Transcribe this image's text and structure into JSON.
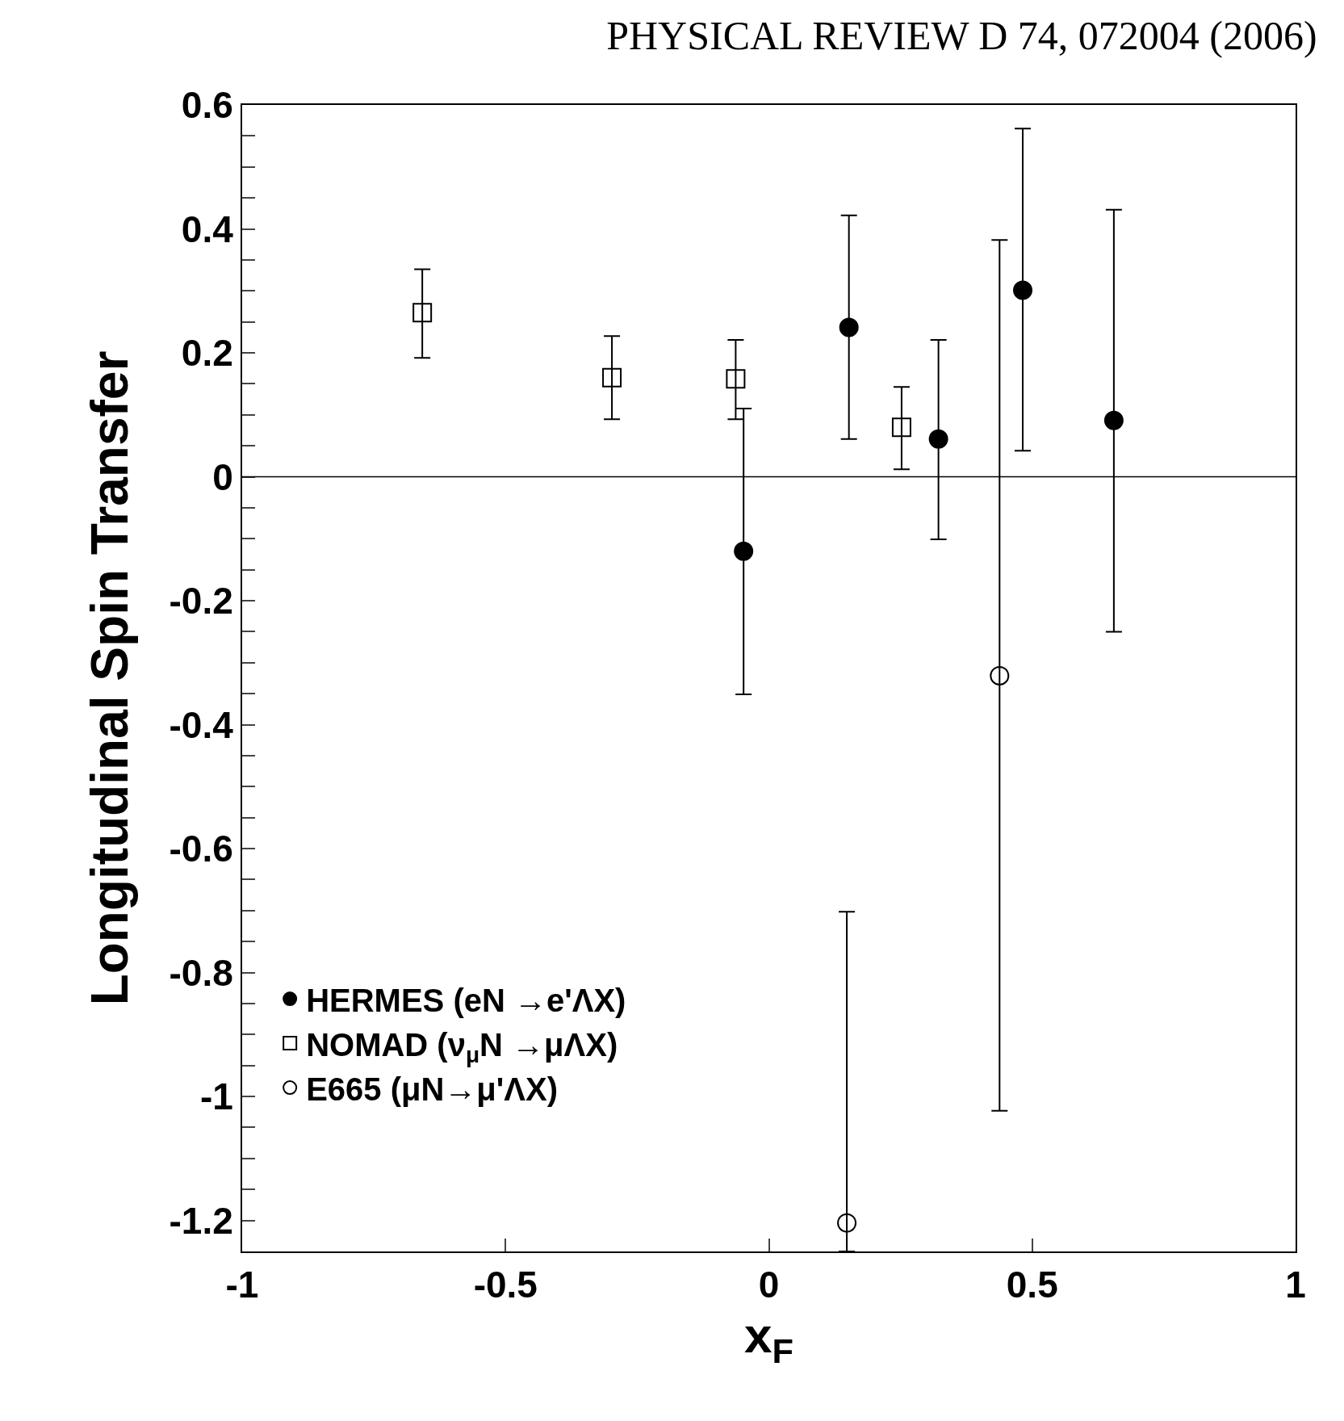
{
  "chart_data": {
    "type": "scatter",
    "title": "PHYSICAL REVIEW D 74, 072004 (2006)",
    "xlabel": "x$_{F}$",
    "ylabel": "Longitudinal Spin Transfer",
    "xlim": [
      -1,
      1
    ],
    "xticks": [
      -1,
      -0.5,
      0,
      0.5,
      1
    ],
    "ylim": [
      -1.25,
      0.6
    ],
    "yticks": [
      -1.2,
      {
        "value": -1.15,
        "label": null
      },
      {
        "value": -1.1,
        "label": null
      },
      {
        "value": -1.05,
        "label": null
      },
      -1,
      {
        "value": -0.95,
        "label": null
      },
      {
        "value": -0.9,
        "label": null
      },
      {
        "value": -0.85,
        "label": null
      },
      -0.8,
      {
        "value": -0.75,
        "label": null
      },
      {
        "value": -0.7,
        "label": null
      },
      {
        "value": -0.65,
        "label": null
      },
      -0.6,
      {
        "value": -0.55,
        "label": null
      },
      {
        "value": -0.5,
        "label": null
      },
      {
        "value": -0.45,
        "label": null
      },
      -0.4,
      {
        "value": -0.35,
        "label": null
      },
      {
        "value": -0.3,
        "label": null
      },
      {
        "value": -0.25,
        "label": null
      },
      -0.2,
      {
        "value": -0.15,
        "label": null
      },
      {
        "value": -0.1,
        "label": null
      },
      {
        "value": -0.05,
        "label": null
      },
      0,
      {
        "value": 0.05,
        "label": null
      },
      {
        "value": 0.1,
        "label": null
      },
      {
        "value": 0.15,
        "label": null
      },
      0.2,
      {
        "value": 0.25,
        "label": null
      },
      {
        "value": 0.3,
        "label": null
      },
      {
        "value": 0.35,
        "label": null
      },
      0.4,
      {
        "value": 0.45,
        "label": null
      },
      {
        "value": 0.5,
        "label": null
      },
      {
        "value": 0.55,
        "label": null
      },
      0.6
    ],
    "legend": "bottom left",
    "ref_lines": [
      {
        "axis": "y",
        "value": 0,
        "color": "#000000"
      }
    ],
    "series": [
      {
        "name": "HERMES (eN →e'ΛX)",
        "color": "#000000",
        "marker": "circle",
        "x": [
          -0.048,
          0.152,
          0.322,
          0.482,
          0.655
        ],
        "values": [
          -0.12,
          0.241,
          0.061,
          0.301,
          0.091
        ],
        "errors": [
          [
            -0.351,
            0.11
          ],
          [
            0.061,
            0.422
          ],
          [
            -0.101,
            0.221
          ],
          [
            0.042,
            0.562
          ],
          [
            -0.25,
            0.431
          ]
        ]
      },
      {
        "name": "NOMAD (ν$_{μ}$N →μΛX)",
        "color": "#000000",
        "marker": "square-open",
        "x": [
          -0.658,
          -0.298,
          -0.063,
          0.252
        ],
        "values": [
          0.265,
          0.16,
          0.158,
          0.08
        ],
        "errors": [
          [
            0.192,
            0.335
          ],
          [
            0.093,
            0.227
          ],
          [
            0.093,
            0.221
          ],
          [
            0.012,
            0.145
          ]
        ]
      },
      {
        "name": "E665 (μN→μ'ΛX)",
        "color": "#000000",
        "marker": "circle-open",
        "x": [
          0.148,
          0.438
        ],
        "values": [
          -1.204,
          -0.321
        ],
        "errors": [
          [
            -1.25,
            -0.702
          ],
          [
            -1.023,
            0.382
          ]
        ]
      }
    ]
  }
}
